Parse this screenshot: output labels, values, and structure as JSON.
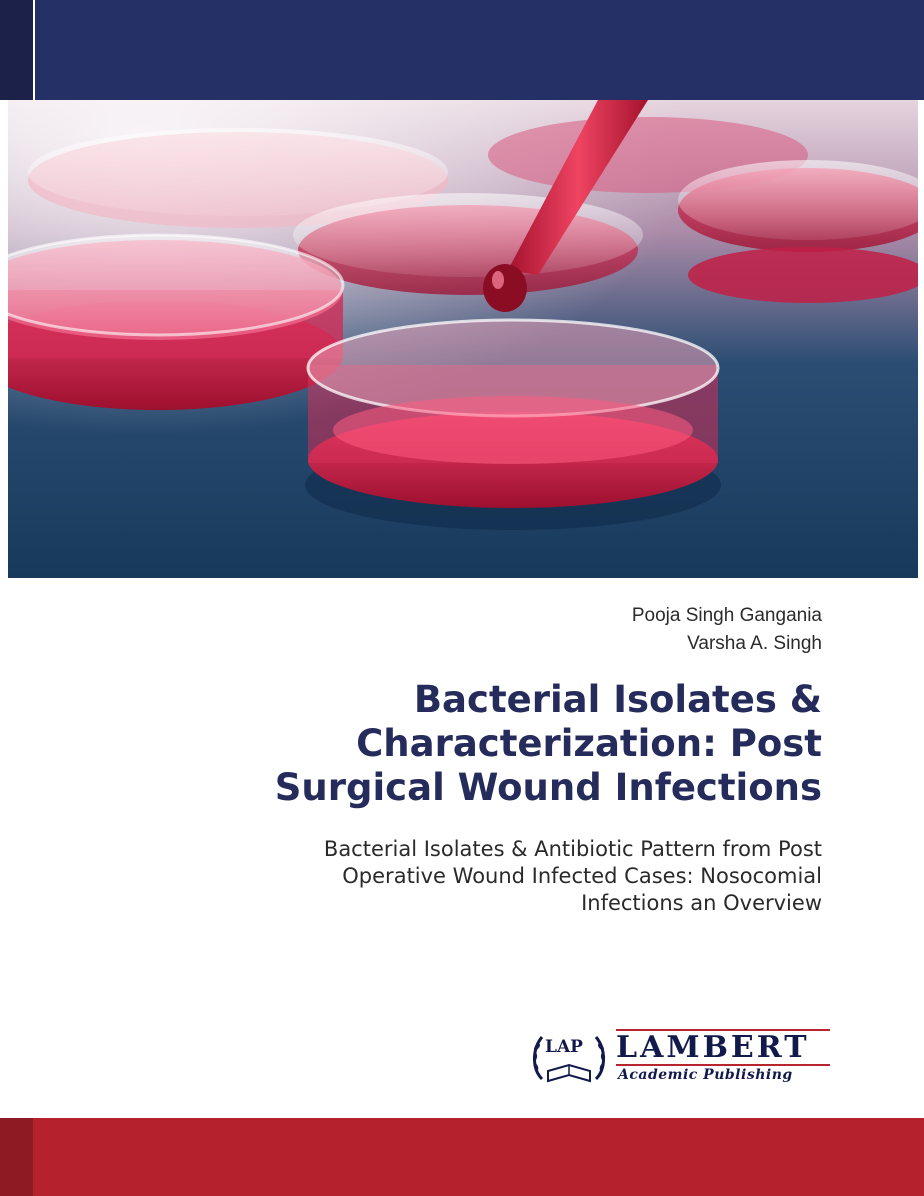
{
  "authors": [
    "Pooja Singh Gangania",
    "Varsha A. Singh"
  ],
  "title_lines": [
    "Bacterial Isolates &",
    "Characterization: Post",
    "Surgical Wound Infections"
  ],
  "subtitle_lines": [
    "Bacterial Isolates & Antibiotic Pattern from Post",
    "Operative Wound Infected Cases: Nosocomial",
    "Infections an Overview"
  ],
  "publisher": {
    "logo_text": "LAP",
    "name": "LAMBERT",
    "subname": "Academic Publishing"
  },
  "colors": {
    "top_band": "#253066",
    "bottom_band": "#b5222d",
    "title": "#252c5c"
  }
}
